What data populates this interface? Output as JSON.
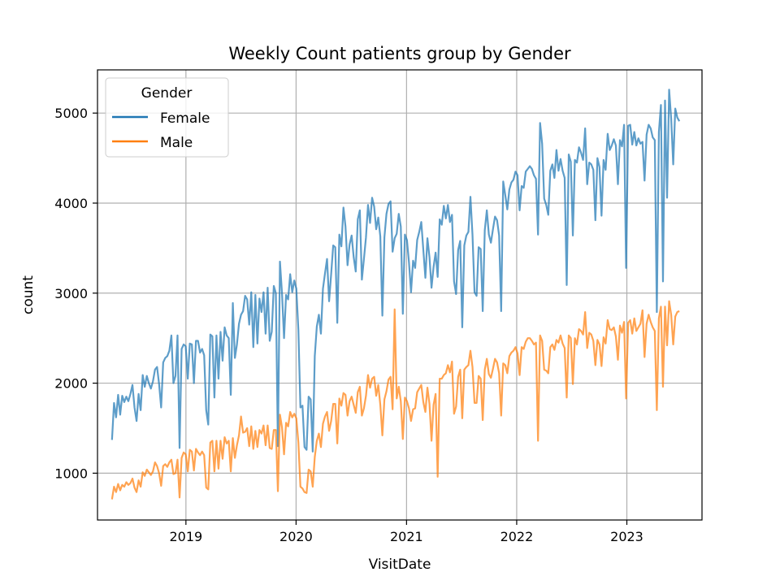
{
  "chart_data": {
    "type": "line",
    "title": "Weekly Count patients group by Gender",
    "xlabel": "VisitDate",
    "ylabel": "count",
    "xlim": [
      "2018-03-14",
      "2023-09-07"
    ],
    "ylim": [
      480,
      5480
    ],
    "x_ticks": [
      {
        "date": "2019-01-01",
        "label": "2019"
      },
      {
        "date": "2020-01-01",
        "label": "2020"
      },
      {
        "date": "2021-01-01",
        "label": "2021"
      },
      {
        "date": "2022-01-01",
        "label": "2022"
      },
      {
        "date": "2023-01-01",
        "label": "2023"
      }
    ],
    "y_ticks": [
      1000,
      2000,
      3000,
      4000,
      5000
    ],
    "grid": true,
    "legend": {
      "title": "Gender",
      "placement": "top-left"
    },
    "x_start": "2018-05-01",
    "x_end": "2023-06-24",
    "series": [
      {
        "name": "Female",
        "color": "#1f77b4",
        "values": [
          1370,
          1780,
          1620,
          1870,
          1650,
          1860,
          1790,
          1850,
          1800,
          1880,
          1980,
          1730,
          1580,
          1880,
          1700,
          2090,
          1960,
          2080,
          2000,
          1940,
          2020,
          2150,
          2180,
          1990,
          1730,
          2230,
          2280,
          2300,
          2360,
          2530,
          2000,
          2080,
          2530,
          1280,
          2380,
          2430,
          2410,
          2050,
          2440,
          2430,
          2000,
          2470,
          2470,
          2340,
          2380,
          2310,
          1700,
          1540,
          2540,
          2520,
          1840,
          2530,
          2050,
          2570,
          2250,
          2620,
          2530,
          2500,
          1870,
          2890,
          2280,
          2430,
          2660,
          2760,
          2800,
          2970,
          2930,
          2650,
          3010,
          2400,
          2980,
          2440,
          2940,
          2790,
          3010,
          2550,
          3060,
          2470,
          2570,
          3080,
          3000,
          1300,
          3350,
          3000,
          2500,
          2980,
          2930,
          3210,
          3010,
          3140,
          3050,
          2590,
          1730,
          1750,
          1290,
          1260,
          1850,
          1820,
          1240,
          2300,
          2630,
          2760,
          2550,
          3050,
          3220,
          3380,
          2910,
          3210,
          3530,
          3510,
          2670,
          3650,
          3520,
          3950,
          3740,
          3310,
          3540,
          3640,
          3400,
          3240,
          3820,
          3920,
          3150,
          3380,
          3620,
          3980,
          3780,
          4060,
          3960,
          3710,
          3840,
          3630,
          2750,
          3620,
          3880,
          3990,
          4020,
          3460,
          3610,
          3660,
          3880,
          3740,
          2770,
          3650,
          3590,
          3340,
          3010,
          3360,
          3280,
          3590,
          3680,
          3790,
          3480,
          3170,
          3610,
          3400,
          3060,
          3290,
          3450,
          3180,
          3820,
          3760,
          3970,
          3830,
          3980,
          3790,
          3870,
          3130,
          2990,
          3480,
          3580,
          2620,
          3530,
          3640,
          3680,
          4070,
          3650,
          3010,
          2970,
          3510,
          3490,
          2800,
          3700,
          3920,
          3650,
          3560,
          3710,
          3850,
          3810,
          3640,
          2800,
          4240,
          4090,
          3930,
          4150,
          4230,
          4260,
          4350,
          4310,
          3920,
          4190,
          4170,
          4350,
          4380,
          4410,
          4380,
          4310,
          4270,
          3650,
          4890,
          4660,
          4050,
          3980,
          3870,
          4360,
          4430,
          4280,
          4590,
          4360,
          4490,
          4360,
          4280,
          3090,
          4540,
          4460,
          3640,
          4480,
          4450,
          4620,
          4560,
          4480,
          4830,
          4210,
          4450,
          4430,
          4370,
          3810,
          4500,
          4400,
          3860,
          4480,
          4370,
          4770,
          4590,
          4640,
          4710,
          4640,
          4210,
          4700,
          4630,
          4870,
          3280,
          4860,
          4870,
          4650,
          4790,
          4640,
          4720,
          4660,
          4680,
          4250,
          4760,
          4870,
          4830,
          4730,
          4700,
          2790,
          4790,
          5090,
          3130,
          5140,
          4060,
          5260,
          4940,
          4430,
          5050,
          4950,
          4910
        ]
      },
      {
        "name": "Male",
        "color": "#ff7f0e",
        "values": [
          710,
          850,
          790,
          880,
          810,
          870,
          850,
          900,
          870,
          890,
          940,
          840,
          790,
          920,
          850,
          1010,
          970,
          1040,
          1010,
          980,
          1020,
          1120,
          1080,
          1000,
          860,
          1080,
          1100,
          1070,
          1120,
          1150,
          990,
          1000,
          1150,
          730,
          1170,
          1230,
          1210,
          1020,
          1260,
          1240,
          1030,
          1270,
          1230,
          1200,
          1240,
          1200,
          840,
          820,
          1340,
          1360,
          1020,
          1360,
          1050,
          1360,
          1160,
          1400,
          1330,
          1360,
          1020,
          1390,
          1170,
          1310,
          1420,
          1630,
          1450,
          1460,
          1500,
          1300,
          1520,
          1270,
          1470,
          1290,
          1480,
          1440,
          1530,
          1310,
          1530,
          1280,
          1270,
          1480,
          1480,
          800,
          1650,
          1510,
          1210,
          1560,
          1520,
          1680,
          1620,
          1660,
          1610,
          1340,
          850,
          830,
          790,
          780,
          1040,
          1020,
          850,
          1180,
          1360,
          1440,
          1290,
          1550,
          1630,
          1680,
          1470,
          1580,
          1770,
          1770,
          1330,
          1830,
          1750,
          1890,
          1870,
          1640,
          1800,
          1850,
          1760,
          1670,
          1900,
          1960,
          1640,
          1720,
          1860,
          2090,
          1950,
          2050,
          2070,
          1860,
          1980,
          1760,
          1420,
          1820,
          1910,
          2040,
          2070,
          1710,
          2820,
          1830,
          1960,
          1800,
          1380,
          1840,
          1800,
          1720,
          1580,
          1710,
          1720,
          1900,
          1940,
          1980,
          1790,
          1680,
          1950,
          1770,
          1360,
          1760,
          1880,
          960,
          2050,
          2050,
          2090,
          2110,
          2200,
          2120,
          2240,
          1660,
          1740,
          2070,
          2150,
          1610,
          2150,
          2180,
          2200,
          2360,
          2180,
          1780,
          1780,
          2080,
          2050,
          1590,
          2150,
          2270,
          2100,
          2060,
          2160,
          2270,
          2230,
          2110,
          1640,
          2220,
          2200,
          2110,
          2300,
          2340,
          2360,
          2400,
          2330,
          2090,
          2400,
          2380,
          2460,
          2500,
          2500,
          2470,
          2430,
          2450,
          1360,
          2530,
          2470,
          2150,
          2140,
          2110,
          2400,
          2430,
          2370,
          2480,
          2450,
          2530,
          2440,
          2390,
          1840,
          2530,
          2500,
          1990,
          2500,
          2430,
          2600,
          2580,
          2540,
          2790,
          2390,
          2560,
          2540,
          2470,
          2200,
          2480,
          2430,
          2190,
          2510,
          2440,
          2700,
          2600,
          2590,
          2620,
          2520,
          2260,
          2640,
          2560,
          2680,
          1830,
          2670,
          2700,
          2550,
          2720,
          2580,
          2620,
          2660,
          2810,
          2290,
          2660,
          2760,
          2680,
          2620,
          2580,
          1700,
          2720,
          2850,
          1960,
          2850,
          2420,
          2910,
          2760,
          2430,
          2740,
          2790,
          2800
        ]
      }
    ]
  }
}
